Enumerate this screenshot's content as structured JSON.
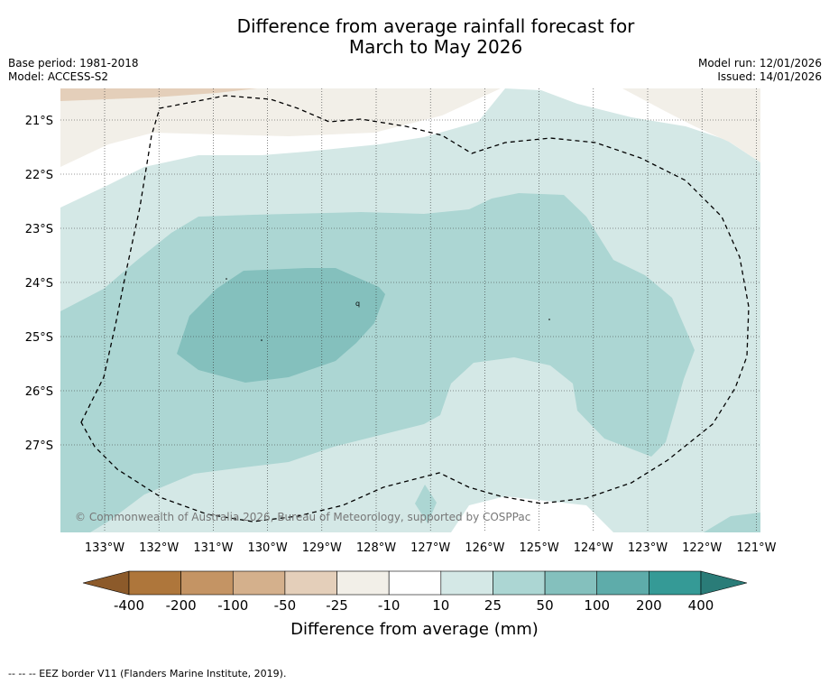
{
  "title": {
    "line1": "Difference from average rainfall forecast for",
    "line2": "March to May 2026"
  },
  "meta": {
    "base_period": "Base period: 1981-2018",
    "model": "Model: ACCESS-S2",
    "model_run": "Model run: 12/01/2026",
    "issued": "Issued: 14/01/2026"
  },
  "map": {
    "lon_labels": [
      "133°W",
      "132°W",
      "131°W",
      "130°W",
      "129°W",
      "128°W",
      "127°W",
      "126°W",
      "125°W",
      "124°W",
      "123°W",
      "122°W",
      "121°W"
    ],
    "lat_labels": [
      "21°S",
      "22°S",
      "23°S",
      "24°S",
      "25°S",
      "26°S",
      "27°S"
    ],
    "copyright": "© Commonwealth of Australia 2026, Bureau of Meteorology, supported by COSPPac",
    "small_marks": [
      "q"
    ]
  },
  "colorbar": {
    "ticks": [
      "-400",
      "-200",
      "-100",
      "-50",
      "-25",
      "-10",
      "10",
      "25",
      "50",
      "100",
      "200",
      "400"
    ],
    "colors": {
      "below_min": "#8c5a2a",
      "m400_m200": "#ae763b",
      "m200_m100": "#c49464",
      "m100_m50": "#d4b08c",
      "m50_m25": "#e4cfba",
      "m25_m10": "#f2efe8",
      "m10_10": "#ffffff",
      "p10_25": "#d4e8e6",
      "p25_50": "#acd6d3",
      "p50_100": "#84c0bd",
      "p100_200": "#5eacaa",
      "p200_400": "#359a96",
      "above_max": "#2a7c78"
    },
    "label": "Difference from average (mm)"
  },
  "footnote": "-- -- -- EEZ border V11 (Flanders Marine Institute, 2019)."
}
